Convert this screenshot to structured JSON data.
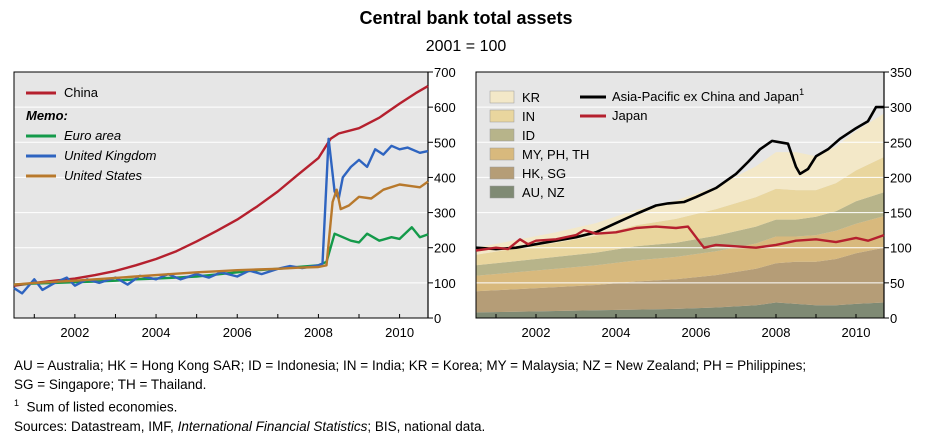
{
  "title": "Central bank total assets",
  "subtitle": "2001 = 100",
  "notes": {
    "abbreviations_line1": "AU = Australia; HK = Hong Kong SAR; ID = Indonesia; IN = India; KR = Korea; MY = Malaysia; NZ = New Zealand; PH = Philippines;",
    "abbreviations_line2": "SG = Singapore; TH = Thailand.",
    "footnote_mark": "1",
    "footnote_text": "Sum of listed economies.",
    "sources_prefix": "Sources: Datastream, IMF, ",
    "sources_italic": "International Financial Statistics",
    "sources_suffix": "; BIS, national data."
  },
  "colors": {
    "china": "#b5202e",
    "euro": "#149a4a",
    "uk": "#2e64c0",
    "us": "#b8792c",
    "apac": "#000000",
    "japan": "#b5202e",
    "kr": "#f3e8c8",
    "in": "#e9d69e",
    "id": "#b7b48a",
    "myphth": "#d8b97d",
    "hksg": "#b59d77",
    "aunz": "#7f8a74",
    "plot_bg": "#e6e6e6",
    "grid": "#ffffff"
  },
  "chart_data": [
    {
      "type": "line",
      "xlim": [
        2000.5,
        2010.7
      ],
      "ylim": [
        0,
        700
      ],
      "ytick_side": "right",
      "x_ticks": [
        "2002",
        "2004",
        "2006",
        "2008",
        "2010"
      ],
      "x_tick_values": [
        2002,
        2004,
        2006,
        2008,
        2010
      ],
      "y_ticks": [
        "0",
        "100",
        "200",
        "300",
        "400",
        "500",
        "600",
        "700"
      ],
      "y_tick_values": [
        0,
        100,
        200,
        300,
        400,
        500,
        600,
        700
      ],
      "legend_memo": "Memo:",
      "series": [
        {
          "name": "China",
          "key": "china",
          "style": "normal",
          "points": [
            [
              2000.5,
              92
            ],
            [
              2001,
              100
            ],
            [
              2001.5,
              106
            ],
            [
              2002,
              112
            ],
            [
              2002.5,
              122
            ],
            [
              2003,
              134
            ],
            [
              2003.5,
              150
            ],
            [
              2004,
              168
            ],
            [
              2004.5,
              190
            ],
            [
              2005,
              218
            ],
            [
              2005.5,
              248
            ],
            [
              2006,
              280
            ],
            [
              2006.5,
              318
            ],
            [
              2007,
              360
            ],
            [
              2007.5,
              408
            ],
            [
              2008,
              455
            ],
            [
              2008.3,
              510
            ],
            [
              2008.5,
              525
            ],
            [
              2009,
              540
            ],
            [
              2009.5,
              570
            ],
            [
              2010,
              610
            ],
            [
              2010.4,
              640
            ],
            [
              2010.7,
              660
            ]
          ]
        },
        {
          "name": "Euro area",
          "key": "euro",
          "style": "italic",
          "points": [
            [
              2000.5,
              95
            ],
            [
              2001,
              98
            ],
            [
              2001.5,
              100
            ],
            [
              2002,
              102
            ],
            [
              2002.5,
              104
            ],
            [
              2003,
              106
            ],
            [
              2003.5,
              110
            ],
            [
              2004,
              112
            ],
            [
              2004.5,
              115
            ],
            [
              2005,
              118
            ],
            [
              2005.5,
              124
            ],
            [
              2006,
              130
            ],
            [
              2006.5,
              136
            ],
            [
              2007,
              140
            ],
            [
              2007.5,
              145
            ],
            [
              2008,
              150
            ],
            [
              2008.2,
              160
            ],
            [
              2008.4,
              240
            ],
            [
              2008.6,
              230
            ],
            [
              2008.8,
              220
            ],
            [
              2009,
              215
            ],
            [
              2009.2,
              240
            ],
            [
              2009.5,
              220
            ],
            [
              2009.8,
              230
            ],
            [
              2010,
              225
            ],
            [
              2010.3,
              258
            ],
            [
              2010.5,
              230
            ],
            [
              2010.7,
              238
            ]
          ]
        },
        {
          "name": "United Kingdom",
          "key": "uk",
          "style": "italic",
          "points": [
            [
              2000.5,
              85
            ],
            [
              2000.7,
              70
            ],
            [
              2001,
              110
            ],
            [
              2001.2,
              80
            ],
            [
              2001.5,
              100
            ],
            [
              2001.8,
              115
            ],
            [
              2002,
              92
            ],
            [
              2002.3,
              110
            ],
            [
              2002.6,
              100
            ],
            [
              2003,
              115
            ],
            [
              2003.3,
              95
            ],
            [
              2003.6,
              120
            ],
            [
              2004,
              110
            ],
            [
              2004.3,
              125
            ],
            [
              2004.6,
              110
            ],
            [
              2005,
              125
            ],
            [
              2005.3,
              115
            ],
            [
              2005.6,
              130
            ],
            [
              2006,
              118
            ],
            [
              2006.3,
              135
            ],
            [
              2006.6,
              125
            ],
            [
              2007,
              140
            ],
            [
              2007.3,
              148
            ],
            [
              2007.6,
              142
            ],
            [
              2008,
              150
            ],
            [
              2008.1,
              155
            ],
            [
              2008.25,
              510
            ],
            [
              2008.4,
              360
            ],
            [
              2008.5,
              340
            ],
            [
              2008.6,
              400
            ],
            [
              2008.8,
              430
            ],
            [
              2009,
              450
            ],
            [
              2009.2,
              430
            ],
            [
              2009.4,
              480
            ],
            [
              2009.6,
              465
            ],
            [
              2009.8,
              490
            ],
            [
              2010,
              480
            ],
            [
              2010.2,
              485
            ],
            [
              2010.5,
              470
            ],
            [
              2010.7,
              475
            ]
          ]
        },
        {
          "name": "United States",
          "key": "us",
          "style": "italic",
          "points": [
            [
              2000.5,
              95
            ],
            [
              2001,
              100
            ],
            [
              2001.5,
              103
            ],
            [
              2002,
              106
            ],
            [
              2002.5,
              110
            ],
            [
              2003,
              114
            ],
            [
              2003.5,
              118
            ],
            [
              2004,
              122
            ],
            [
              2004.5,
              126
            ],
            [
              2005,
              130
            ],
            [
              2005.5,
              133
            ],
            [
              2006,
              136
            ],
            [
              2006.5,
              138
            ],
            [
              2007,
              140
            ],
            [
              2007.5,
              143
            ],
            [
              2008,
              145
            ],
            [
              2008.2,
              150
            ],
            [
              2008.35,
              330
            ],
            [
              2008.45,
              365
            ],
            [
              2008.55,
              310
            ],
            [
              2008.75,
              320
            ],
            [
              2009,
              345
            ],
            [
              2009.3,
              340
            ],
            [
              2009.6,
              365
            ],
            [
              2010,
              380
            ],
            [
              2010.3,
              375
            ],
            [
              2010.5,
              372
            ],
            [
              2010.7,
              388
            ]
          ]
        }
      ]
    },
    {
      "type": "area",
      "stacked": true,
      "xlim": [
        2000.5,
        2010.7
      ],
      "ylim": [
        0,
        350
      ],
      "ytick_side": "right",
      "x_ticks": [
        "2002",
        "2004",
        "2006",
        "2008",
        "2010"
      ],
      "x_tick_values": [
        2002,
        2004,
        2006,
        2008,
        2010
      ],
      "y_ticks": [
        "0",
        "50",
        "100",
        "150",
        "200",
        "250",
        "300",
        "350"
      ],
      "y_tick_values": [
        0,
        50,
        100,
        150,
        200,
        250,
        300,
        350
      ],
      "x": [
        2000.5,
        2001.5,
        2002.5,
        2003.5,
        2004.5,
        2005.5,
        2006.5,
        2007.5,
        2008.0,
        2008.5,
        2009.0,
        2009.5,
        2010.0,
        2010.7
      ],
      "series": [
        {
          "name": "AU, NZ",
          "key": "aunz",
          "values": [
            8,
            9,
            10,
            11,
            12,
            13,
            15,
            18,
            22,
            20,
            18,
            18,
            20,
            22
          ]
        },
        {
          "name": "HK, SG",
          "key": "hksg",
          "values": [
            30,
            32,
            34,
            36,
            40,
            42,
            46,
            52,
            56,
            60,
            62,
            66,
            72,
            78
          ]
        },
        {
          "name": "MY, PH, TH",
          "key": "myphth",
          "values": [
            22,
            24,
            26,
            28,
            30,
            32,
            34,
            36,
            38,
            36,
            38,
            40,
            42,
            45
          ]
        },
        {
          "name": "ID",
          "key": "id",
          "values": [
            15,
            16,
            17,
            18,
            20,
            20,
            22,
            24,
            24,
            24,
            26,
            28,
            32,
            34
          ]
        },
        {
          "name": "IN",
          "key": "in",
          "values": [
            15,
            18,
            20,
            24,
            30,
            34,
            38,
            42,
            44,
            42,
            38,
            40,
            44,
            50
          ]
        },
        {
          "name": "KR",
          "key": "kr",
          "values": [
            10,
            12,
            15,
            18,
            22,
            26,
            32,
            44,
            52,
            54,
            48,
            52,
            56,
            62
          ]
        }
      ],
      "lines": [
        {
          "name": "Asia-Pacific ex China and Japan",
          "superscript": "1",
          "key": "apac",
          "points": [
            [
              2000.5,
              100
            ],
            [
              2001,
              98
            ],
            [
              2001.5,
              100
            ],
            [
              2002,
              105
            ],
            [
              2002.5,
              110
            ],
            [
              2003,
              115
            ],
            [
              2003.5,
              122
            ],
            [
              2004,
              135
            ],
            [
              2004.5,
              148
            ],
            [
              2005,
              160
            ],
            [
              2005.3,
              163
            ],
            [
              2005.7,
              165
            ],
            [
              2006,
              172
            ],
            [
              2006.5,
              185
            ],
            [
              2007,
              205
            ],
            [
              2007.3,
              222
            ],
            [
              2007.6,
              240
            ],
            [
              2007.9,
              252
            ],
            [
              2008.1,
              250
            ],
            [
              2008.3,
              248
            ],
            [
              2008.5,
              215
            ],
            [
              2008.6,
              205
            ],
            [
              2008.8,
              212
            ],
            [
              2009,
              230
            ],
            [
              2009.3,
              240
            ],
            [
              2009.6,
              255
            ],
            [
              2010,
              270
            ],
            [
              2010.3,
              280
            ],
            [
              2010.5,
              300
            ],
            [
              2010.7,
              300
            ]
          ]
        },
        {
          "name": "Japan",
          "key": "japan",
          "points": [
            [
              2000.5,
              96
            ],
            [
              2001,
              100
            ],
            [
              2001.3,
              98
            ],
            [
              2001.6,
              112
            ],
            [
              2001.8,
              105
            ],
            [
              2002,
              110
            ],
            [
              2002.5,
              112
            ],
            [
              2003,
              118
            ],
            [
              2003.2,
              125
            ],
            [
              2003.5,
              120
            ],
            [
              2004,
              122
            ],
            [
              2004.5,
              128
            ],
            [
              2005,
              130
            ],
            [
              2005.5,
              128
            ],
            [
              2005.8,
              130
            ],
            [
              2006,
              115
            ],
            [
              2006.2,
              100
            ],
            [
              2006.5,
              104
            ],
            [
              2007,
              102
            ],
            [
              2007.5,
              100
            ],
            [
              2008,
              104
            ],
            [
              2008.5,
              110
            ],
            [
              2009,
              112
            ],
            [
              2009.5,
              108
            ],
            [
              2010,
              114
            ],
            [
              2010.3,
              110
            ],
            [
              2010.7,
              118
            ]
          ]
        }
      ]
    }
  ]
}
